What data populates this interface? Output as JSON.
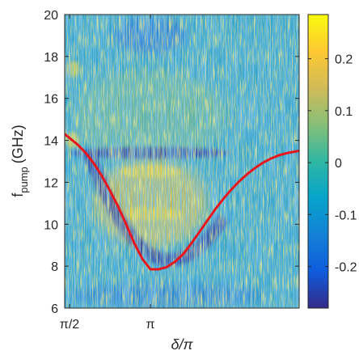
{
  "chart_data": {
    "type": "heatmap",
    "title": "",
    "xlabel": "δ/π",
    "ylabel": {
      "main": "f",
      "sub": "pump",
      "unit": "(GHz)"
    },
    "xlim": [
      1.47,
      2.92
    ],
    "ylim": [
      6,
      20
    ],
    "xticks": [
      {
        "value": 1.5,
        "label": "π/2"
      },
      {
        "value": 2.0,
        "label": "π"
      }
    ],
    "yticks": [
      6,
      8,
      10,
      12,
      14,
      16,
      18,
      20
    ],
    "colorbar": {
      "range": [
        -0.28,
        0.285
      ],
      "ticks": [
        {
          "value": 0.2,
          "label": "0.2"
        },
        {
          "value": 0.1,
          "label": "0.1"
        },
        {
          "value": 0,
          "label": "0"
        },
        {
          "value": -0.1,
          "label": "-0.1"
        },
        {
          "value": -0.2,
          "label": "-0.2"
        }
      ],
      "colormap": "parula",
      "colors": [
        "#352a87",
        "#0f5cdd",
        "#1481d6",
        "#06a4ca",
        "#2eb7a4",
        "#87bf77",
        "#d1bb59",
        "#fec832",
        "#f9fb0e"
      ]
    },
    "series": [
      {
        "style": "line",
        "color": "#e8161d",
        "x": [
          1.47,
          1.55,
          1.6,
          1.65,
          1.7,
          1.75,
          1.8,
          1.85,
          1.9,
          1.95,
          2.0,
          2.05,
          2.1,
          2.15,
          2.2,
          2.25,
          2.3,
          2.35,
          2.4,
          2.45,
          2.5,
          2.55,
          2.6,
          2.65,
          2.7,
          2.75,
          2.8,
          2.85,
          2.92
        ],
        "y": [
          14.3,
          13.8,
          13.4,
          12.9,
          12.3,
          11.6,
          10.85,
          10.0,
          9.1,
          8.35,
          7.85,
          7.85,
          7.95,
          8.2,
          8.55,
          9.05,
          9.6,
          10.15,
          10.7,
          11.2,
          11.65,
          12.05,
          12.4,
          12.7,
          12.95,
          13.15,
          13.3,
          13.4,
          13.5
        ]
      }
    ],
    "features": {
      "dark_band": {
        "x": [
          1.62,
          2.02,
          2.45
        ],
        "y": [
          13.4,
          7.4,
          10.3
        ]
      },
      "light_regions": [
        {
          "x": 2.0,
          "y": 12.5
        },
        {
          "x": 2.0,
          "y": 10.5
        },
        {
          "x": 1.52,
          "y": 14.0
        },
        {
          "x": 1.52,
          "y": 17.4
        }
      ]
    }
  }
}
